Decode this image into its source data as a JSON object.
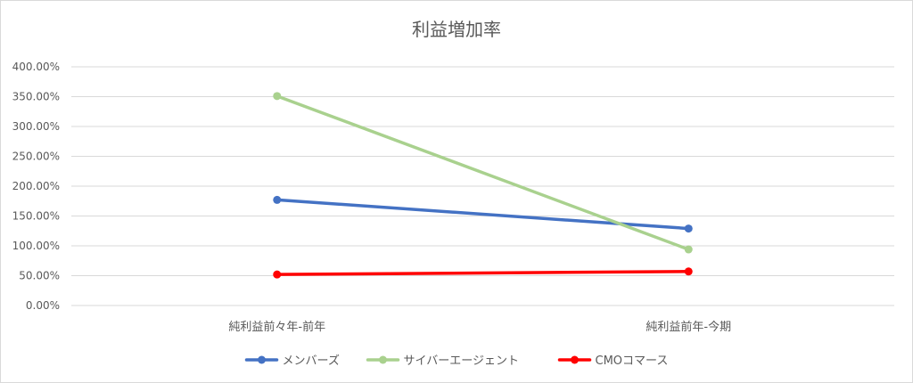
{
  "chart_data": {
    "type": "line",
    "title": "利益増加率",
    "categories": [
      "純利益前々年-前年",
      "純利益前年-今期"
    ],
    "y_tick_labels": [
      "0.00%",
      "50.00%",
      "100.00%",
      "150.00%",
      "200.00%",
      "250.00%",
      "300.00%",
      "350.00%",
      "400.00%"
    ],
    "ylim": [
      0,
      400
    ],
    "grid": true,
    "legend_position": "bottom",
    "series": [
      {
        "name": "メンバーズ",
        "color": "#4472C4",
        "values": [
          177,
          129
        ]
      },
      {
        "name": "サイバーエージェント",
        "color": "#A9D18E",
        "values": [
          351,
          94
        ]
      },
      {
        "name": "CMOコマース",
        "color": "#FF0000",
        "values": [
          52,
          57
        ]
      }
    ]
  }
}
